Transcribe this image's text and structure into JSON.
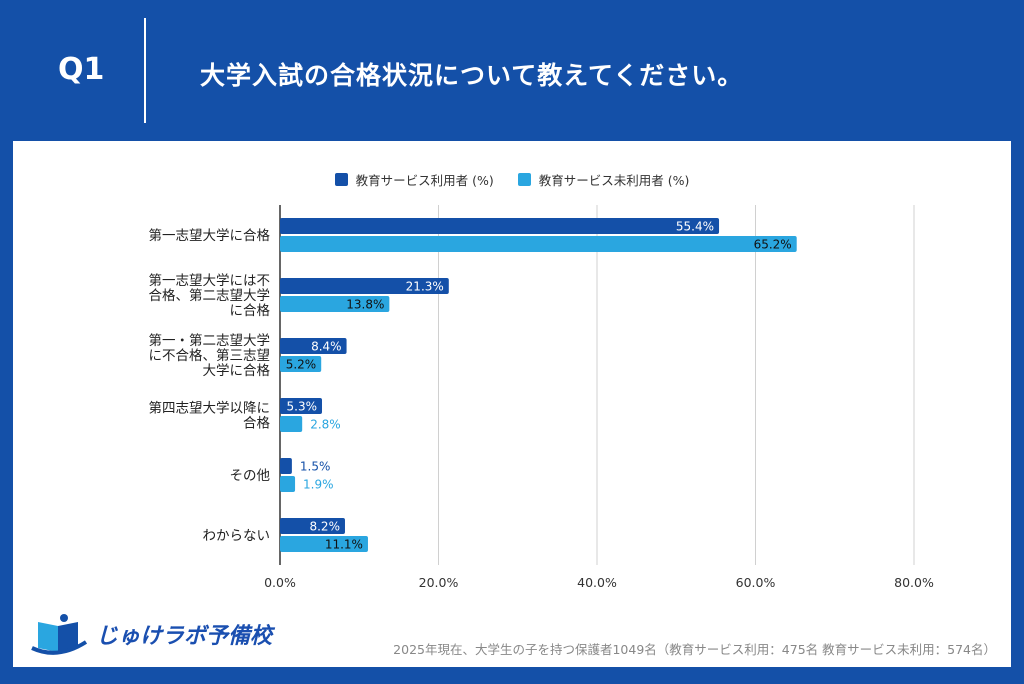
{
  "header": {
    "q": "Q1",
    "title": "大学入試の合格状況について教えてください。"
  },
  "footer": {
    "logo_text": "じゅけラボ予備校",
    "note": "2025年現在、大学生の子を持つ保護者1049名（教育サービス利用：475名 教育サービス未利用：574名）"
  },
  "chart_data": {
    "type": "bar",
    "orientation": "horizontal",
    "categories": [
      "第一志望大学に合格",
      "第一志望大学には不合格、第二志望大学に合格",
      "第一・第二志望大学に不合格、第三志望大学に合格",
      "第四志望大学以降に合格",
      "その他",
      "わからない"
    ],
    "category_lines": [
      [
        "第一志望大学に合格"
      ],
      [
        "第一志望大学には不",
        "合格、第二志望大学",
        "に合格"
      ],
      [
        "第一・第二志望大学",
        "に不合格、第三志望",
        "大学に合格"
      ],
      [
        "第四志望大学以降に",
        "合格"
      ],
      [
        "その他"
      ],
      [
        "わからない"
      ]
    ],
    "series": [
      {
        "name": "教育サービス利用者 (%)",
        "color": "#1450a8",
        "values": [
          55.4,
          21.3,
          8.4,
          5.3,
          1.5,
          8.2
        ]
      },
      {
        "name": "教育サービス未利用者 (%)",
        "color": "#2aa6e0",
        "values": [
          65.2,
          13.8,
          5.2,
          2.8,
          1.9,
          11.1
        ]
      }
    ],
    "xlim": [
      0,
      80
    ],
    "xticks": [
      0,
      20,
      40,
      60,
      80
    ],
    "xtick_labels": [
      "0.0%",
      "20.0%",
      "40.0%",
      "60.0%",
      "80.0%"
    ],
    "grid": true,
    "legend": "top"
  }
}
